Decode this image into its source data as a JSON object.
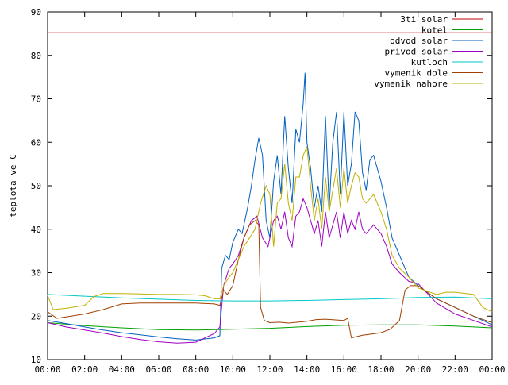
{
  "chart_data": {
    "type": "line",
    "title": "",
    "xlabel": "",
    "ylabel": "teplota ve C",
    "xlim": [
      0,
      24
    ],
    "ylim": [
      10,
      90
    ],
    "grid": false,
    "legend_position": "top-right",
    "x_ticks": [
      {
        "v": 0,
        "label": "00:00"
      },
      {
        "v": 2,
        "label": "02:00"
      },
      {
        "v": 4,
        "label": "04:00"
      },
      {
        "v": 6,
        "label": "06:00"
      },
      {
        "v": 8,
        "label": "08:00"
      },
      {
        "v": 10,
        "label": "10:00"
      },
      {
        "v": 12,
        "label": "12:00"
      },
      {
        "v": 14,
        "label": "14:00"
      },
      {
        "v": 16,
        "label": "16:00"
      },
      {
        "v": 18,
        "label": "18:00"
      },
      {
        "v": 20,
        "label": "20:00"
      },
      {
        "v": 22,
        "label": "22:00"
      },
      {
        "v": 24,
        "label": "00:00"
      }
    ],
    "y_ticks": [
      10,
      20,
      30,
      40,
      50,
      60,
      70,
      80,
      90
    ],
    "series": [
      {
        "name": "3ti solar",
        "color": "#c00000",
        "points": [
          [
            0,
            85.2
          ],
          [
            24,
            85.2
          ]
        ]
      },
      {
        "name": "kotel",
        "color": "#00a000",
        "points": [
          [
            0,
            18.5
          ],
          [
            2,
            17.8
          ],
          [
            4,
            17.3
          ],
          [
            6,
            16.9
          ],
          [
            8,
            16.8
          ],
          [
            10,
            17.0
          ],
          [
            12,
            17.2
          ],
          [
            14,
            17.6
          ],
          [
            16,
            17.9
          ],
          [
            18,
            18.0
          ],
          [
            20,
            18.0
          ],
          [
            22,
            17.7
          ],
          [
            24,
            17.3
          ]
        ]
      },
      {
        "name": "odvod solar",
        "color": "#0060c0",
        "points": [
          [
            0,
            19.0
          ],
          [
            1,
            18.3
          ],
          [
            2,
            17.5
          ],
          [
            3,
            16.8
          ],
          [
            4,
            16.2
          ],
          [
            5,
            15.7
          ],
          [
            6,
            15.2
          ],
          [
            7,
            14.8
          ],
          [
            8,
            14.5
          ],
          [
            9,
            15.0
          ],
          [
            9.3,
            15.5
          ],
          [
            9.4,
            31
          ],
          [
            9.6,
            34
          ],
          [
            9.8,
            33
          ],
          [
            10,
            37
          ],
          [
            10.3,
            40
          ],
          [
            10.5,
            39
          ],
          [
            10.8,
            45
          ],
          [
            11,
            50
          ],
          [
            11.2,
            56
          ],
          [
            11.4,
            61
          ],
          [
            11.6,
            57
          ],
          [
            11.8,
            42
          ],
          [
            12,
            38
          ],
          [
            12.2,
            51
          ],
          [
            12.4,
            57
          ],
          [
            12.6,
            48
          ],
          [
            12.8,
            66
          ],
          [
            13,
            54
          ],
          [
            13.2,
            46
          ],
          [
            13.4,
            63
          ],
          [
            13.6,
            60
          ],
          [
            13.8,
            69
          ],
          [
            13.9,
            76
          ],
          [
            14,
            60
          ],
          [
            14.2,
            54
          ],
          [
            14.4,
            45
          ],
          [
            14.6,
            50
          ],
          [
            14.8,
            44
          ],
          [
            15,
            66
          ],
          [
            15.2,
            45
          ],
          [
            15.4,
            60
          ],
          [
            15.6,
            67
          ],
          [
            15.8,
            48
          ],
          [
            16,
            67
          ],
          [
            16.2,
            50
          ],
          [
            16.4,
            55
          ],
          [
            16.6,
            67
          ],
          [
            16.8,
            65
          ],
          [
            17,
            53
          ],
          [
            17.2,
            49
          ],
          [
            17.4,
            56
          ],
          [
            17.6,
            57
          ],
          [
            17.8,
            54
          ],
          [
            18,
            51
          ],
          [
            18.3,
            45
          ],
          [
            18.6,
            38
          ],
          [
            19,
            34
          ],
          [
            19.5,
            29
          ],
          [
            20,
            27
          ],
          [
            21,
            24
          ],
          [
            22,
            22
          ],
          [
            23,
            20
          ],
          [
            24,
            18
          ]
        ]
      },
      {
        "name": "privod solar",
        "color": "#a000c0",
        "points": [
          [
            0,
            18.5
          ],
          [
            1,
            17.5
          ],
          [
            2,
            16.8
          ],
          [
            3,
            16.1
          ],
          [
            4,
            15.3
          ],
          [
            5,
            14.6
          ],
          [
            6,
            14.1
          ],
          [
            7,
            13.8
          ],
          [
            8,
            14.0
          ],
          [
            9,
            16.0
          ],
          [
            9.3,
            17.5
          ],
          [
            9.5,
            27
          ],
          [
            9.8,
            31
          ],
          [
            10,
            32
          ],
          [
            10.3,
            34
          ],
          [
            10.6,
            38
          ],
          [
            11,
            42
          ],
          [
            11.3,
            43
          ],
          [
            11.6,
            38
          ],
          [
            11.9,
            36
          ],
          [
            12.2,
            42
          ],
          [
            12.4,
            43
          ],
          [
            12.6,
            40
          ],
          [
            12.8,
            44
          ],
          [
            13,
            38
          ],
          [
            13.2,
            36
          ],
          [
            13.4,
            43
          ],
          [
            13.6,
            44
          ],
          [
            13.8,
            47
          ],
          [
            14,
            45
          ],
          [
            14.2,
            42
          ],
          [
            14.4,
            39
          ],
          [
            14.6,
            42
          ],
          [
            14.8,
            36
          ],
          [
            15,
            44
          ],
          [
            15.2,
            38
          ],
          [
            15.4,
            41
          ],
          [
            15.6,
            44
          ],
          [
            15.8,
            38
          ],
          [
            16,
            44
          ],
          [
            16.2,
            39
          ],
          [
            16.4,
            42
          ],
          [
            16.6,
            40
          ],
          [
            16.8,
            44
          ],
          [
            17,
            40
          ],
          [
            17.2,
            39
          ],
          [
            17.4,
            40
          ],
          [
            17.6,
            41
          ],
          [
            17.8,
            40
          ],
          [
            18,
            39
          ],
          [
            18.3,
            36
          ],
          [
            18.6,
            32
          ],
          [
            19,
            30
          ],
          [
            19.5,
            28
          ],
          [
            20,
            27.5
          ],
          [
            21,
            23
          ],
          [
            22,
            20.5
          ],
          [
            23,
            19
          ],
          [
            24,
            17.5
          ]
        ]
      },
      {
        "name": "kutloch",
        "color": "#00c8c8",
        "points": [
          [
            0,
            25
          ],
          [
            2,
            24.6
          ],
          [
            4,
            24.2
          ],
          [
            6,
            23.9
          ],
          [
            8,
            23.6
          ],
          [
            10,
            23.5
          ],
          [
            12,
            23.5
          ],
          [
            14,
            23.6
          ],
          [
            16,
            23.8
          ],
          [
            18,
            24.0
          ],
          [
            20,
            24.3
          ],
          [
            22,
            24.4
          ],
          [
            24,
            24.0
          ]
        ]
      },
      {
        "name": "vymenik dole",
        "color": "#a04000",
        "points": [
          [
            0,
            21
          ],
          [
            0.5,
            19.5
          ],
          [
            1,
            19.8
          ],
          [
            2,
            20.5
          ],
          [
            3,
            21.5
          ],
          [
            4,
            22.8
          ],
          [
            5,
            23.0
          ],
          [
            6,
            23.0
          ],
          [
            7,
            23.0
          ],
          [
            8,
            23.0
          ],
          [
            9,
            22.8
          ],
          [
            9.3,
            22.5
          ],
          [
            9.5,
            26
          ],
          [
            9.7,
            25
          ],
          [
            10,
            27
          ],
          [
            10.3,
            33
          ],
          [
            10.6,
            38
          ],
          [
            10.9,
            41
          ],
          [
            11.2,
            42
          ],
          [
            11.4,
            41
          ],
          [
            11.5,
            22
          ],
          [
            11.7,
            19
          ],
          [
            12,
            18.5
          ],
          [
            12.5,
            18.6
          ],
          [
            13,
            18.4
          ],
          [
            14,
            18.8
          ],
          [
            14.5,
            19.2
          ],
          [
            15,
            19.3
          ],
          [
            16,
            19.0
          ],
          [
            16.2,
            19.5
          ],
          [
            16.4,
            15
          ],
          [
            17,
            15.6
          ],
          [
            17.5,
            15.9
          ],
          [
            18,
            16.2
          ],
          [
            18.5,
            17
          ],
          [
            19,
            19
          ],
          [
            19.3,
            26
          ],
          [
            19.6,
            27
          ],
          [
            20,
            27
          ],
          [
            21,
            24
          ],
          [
            22,
            22
          ],
          [
            23,
            20
          ],
          [
            24,
            18.5
          ]
        ]
      },
      {
        "name": "vymenik nahore",
        "color": "#c0b000",
        "points": [
          [
            0,
            24.8
          ],
          [
            0.3,
            21.5
          ],
          [
            1,
            21.8
          ],
          [
            2,
            22.5
          ],
          [
            2.5,
            24.5
          ],
          [
            3,
            25.2
          ],
          [
            4,
            25.2
          ],
          [
            5,
            25.1
          ],
          [
            6,
            25.0
          ],
          [
            7,
            25.0
          ],
          [
            8,
            24.9
          ],
          [
            8.5,
            24.7
          ],
          [
            9,
            24.0
          ],
          [
            9.3,
            24.0
          ],
          [
            9.5,
            27
          ],
          [
            9.8,
            29
          ],
          [
            10,
            30
          ],
          [
            10.3,
            33
          ],
          [
            10.6,
            36
          ],
          [
            10.9,
            38
          ],
          [
            11.2,
            40
          ],
          [
            11.5,
            46
          ],
          [
            11.8,
            50
          ],
          [
            12,
            48
          ],
          [
            12.2,
            36
          ],
          [
            12.4,
            46
          ],
          [
            12.6,
            47
          ],
          [
            12.8,
            55
          ],
          [
            13,
            46
          ],
          [
            13.2,
            42
          ],
          [
            13.4,
            52
          ],
          [
            13.6,
            52
          ],
          [
            13.8,
            57
          ],
          [
            14,
            59
          ],
          [
            14.2,
            50
          ],
          [
            14.4,
            42
          ],
          [
            14.6,
            47
          ],
          [
            14.8,
            40
          ],
          [
            15,
            52
          ],
          [
            15.2,
            44
          ],
          [
            15.4,
            49
          ],
          [
            15.6,
            54
          ],
          [
            15.8,
            45
          ],
          [
            16,
            54
          ],
          [
            16.2,
            46
          ],
          [
            16.4,
            50
          ],
          [
            16.6,
            53
          ],
          [
            16.8,
            52
          ],
          [
            17,
            47
          ],
          [
            17.2,
            46
          ],
          [
            17.4,
            47
          ],
          [
            17.6,
            48
          ],
          [
            17.8,
            46
          ],
          [
            18,
            44
          ],
          [
            18.3,
            40
          ],
          [
            18.6,
            34
          ],
          [
            19,
            31
          ],
          [
            19.5,
            29
          ],
          [
            20,
            26.5
          ],
          [
            21,
            25
          ],
          [
            21.5,
            25.5
          ],
          [
            22,
            25.5
          ],
          [
            23,
            25
          ],
          [
            23.5,
            22
          ],
          [
            24,
            21
          ]
        ]
      }
    ]
  }
}
